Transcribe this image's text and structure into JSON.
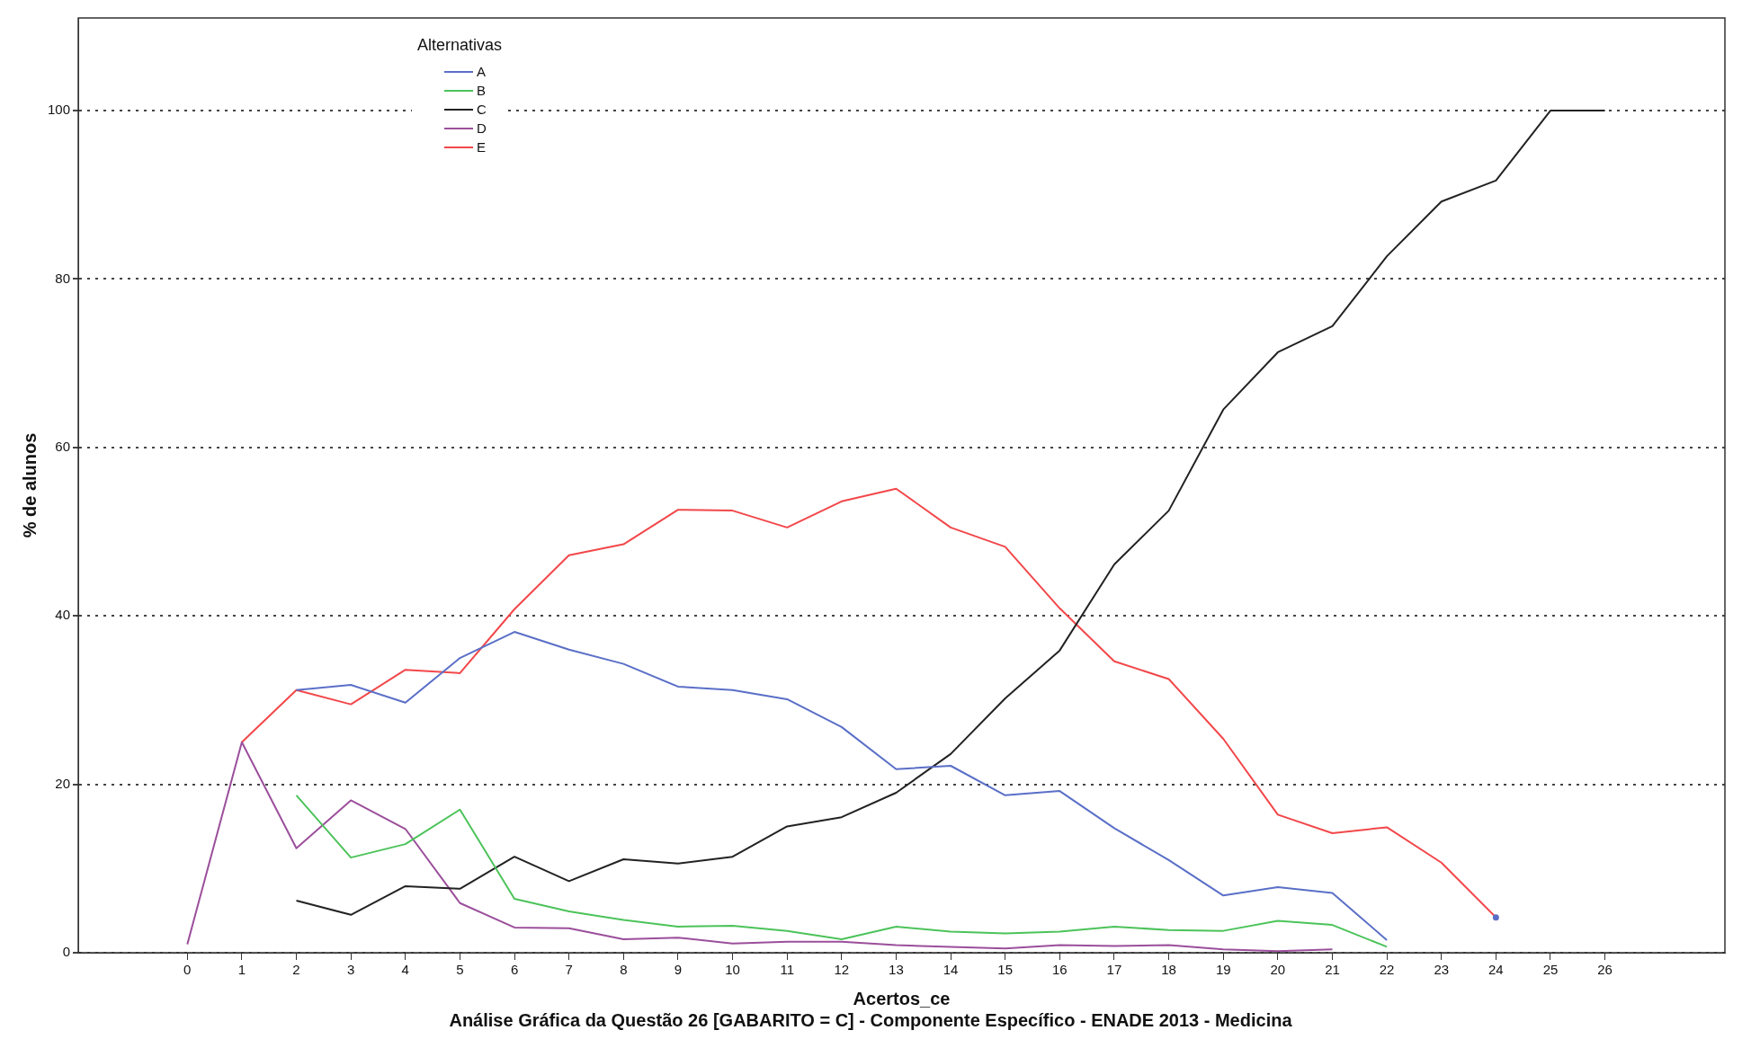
{
  "chart_data": {
    "type": "line",
    "title": "Análise Gráfica da Questão 26 [GABARITO = C] - Componente Específico - ENADE 2013 - Medicina",
    "xlabel": "Acertos_ce",
    "ylabel": "% de alunos",
    "legend_title": "Alternativas",
    "x": [
      0,
      1,
      2,
      3,
      4,
      5,
      6,
      7,
      8,
      9,
      10,
      11,
      12,
      13,
      14,
      15,
      16,
      17,
      18,
      19,
      20,
      21,
      22,
      23,
      24,
      25,
      26
    ],
    "series": [
      {
        "name": "A",
        "color": "#5a6fc7",
        "values": [
          null,
          null,
          31.2,
          31.8,
          29.7,
          35,
          38.1,
          36,
          34.3,
          31.6,
          31.2,
          30.1,
          26.8,
          21.8,
          22.2,
          18.7,
          19.2,
          14.8,
          11,
          6.8,
          7.8,
          7.1,
          1.5,
          null,
          4.2,
          null,
          null
        ]
      },
      {
        "name": "B",
        "color": "#4cc35a",
        "values": [
          null,
          null,
          18.7,
          11.3,
          12.9,
          17,
          6.4,
          4.9,
          3.9,
          3.1,
          3.2,
          2.6,
          1.6,
          3.1,
          2.5,
          2.3,
          2.5,
          3.1,
          2.7,
          2.6,
          3.8,
          3.3,
          0.7,
          null,
          null,
          null,
          null
        ]
      },
      {
        "name": "C",
        "color": "#222222",
        "values": [
          null,
          null,
          6.2,
          4.5,
          7.9,
          7.6,
          11.4,
          8.5,
          11.1,
          10.6,
          11.4,
          15,
          16.1,
          19,
          23.6,
          30.2,
          35.9,
          46.1,
          52.5,
          64.5,
          71.3,
          74.4,
          82.7,
          89.2,
          91.7,
          100,
          100
        ]
      },
      {
        "name": "D",
        "color": "#9b4f9b",
        "values": [
          1,
          25,
          12.4,
          18.1,
          14.7,
          5.9,
          3,
          2.9,
          1.6,
          1.8,
          1.1,
          1.3,
          1.3,
          0.9,
          0.7,
          0.5,
          0.9,
          0.8,
          0.9,
          0.4,
          0.2,
          0.4,
          null,
          null,
          null,
          null,
          null
        ]
      },
      {
        "name": "E",
        "color": "#f2474a",
        "values": [
          null,
          25,
          31.2,
          29.5,
          33.6,
          33.2,
          40.8,
          47.2,
          48.5,
          52.6,
          52.5,
          50.5,
          53.6,
          55.1,
          50.5,
          48.2,
          40.9,
          34.6,
          32.5,
          25.4,
          16.4,
          14.2,
          14.9,
          10.7,
          4.2,
          null,
          null
        ]
      }
    ],
    "xlim": [
      -2,
      28.2
    ],
    "xticks": [
      0,
      1,
      2,
      3,
      4,
      5,
      6,
      7,
      8,
      9,
      10,
      11,
      12,
      13,
      14,
      15,
      16,
      17,
      18,
      19,
      20,
      21,
      22,
      23,
      24,
      25,
      26
    ],
    "ylim": [
      0,
      111
    ],
    "yticks": [
      0,
      20,
      40,
      60,
      80,
      100
    ],
    "grid": "y",
    "legend": "top left",
    "marker": "none",
    "line_style": "solid"
  }
}
